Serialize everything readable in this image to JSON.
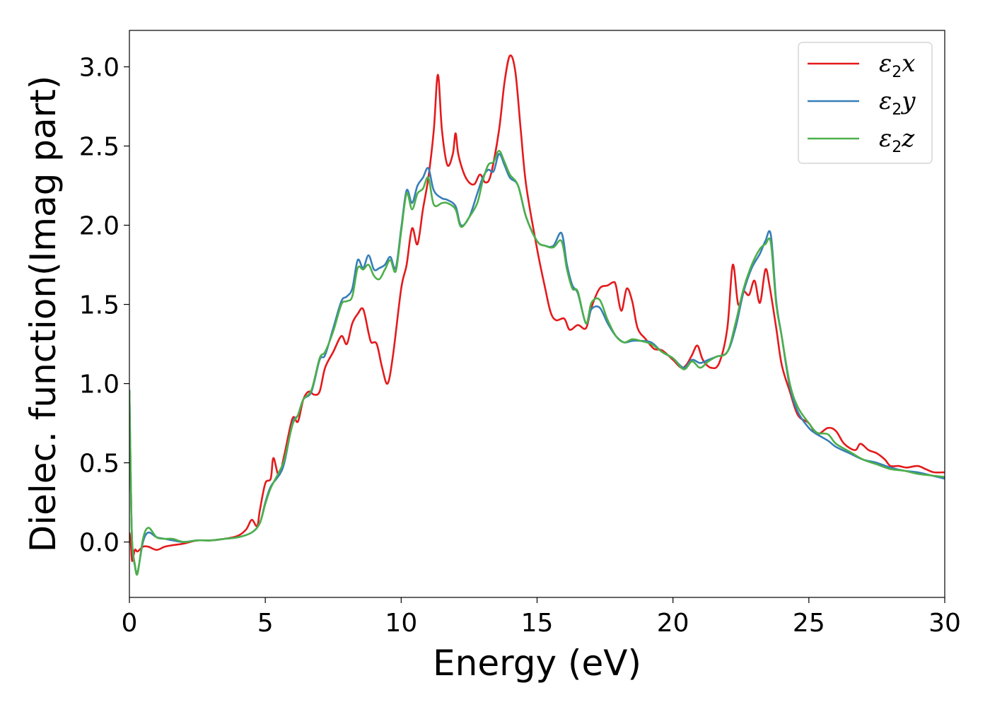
{
  "chart_data": {
    "type": "line",
    "title": "",
    "xlabel": "Energy (eV)",
    "ylabel": "Dielec. function(Imag part)",
    "xlim": [
      0,
      30
    ],
    "ylim": [
      -0.35,
      3.23
    ],
    "x_ticks": [
      0,
      5,
      10,
      15,
      20,
      25,
      30
    ],
    "x_tick_labels": [
      "0",
      "5",
      "10",
      "15",
      "20",
      "25",
      "30"
    ],
    "y_ticks": [
      0.0,
      0.5,
      1.0,
      1.5,
      2.0,
      2.5,
      3.0
    ],
    "y_tick_labels": [
      "0.0",
      "0.5",
      "1.0",
      "1.5",
      "2.0",
      "2.5",
      "3.0"
    ],
    "grid": false,
    "legend_position": "top-right",
    "series": [
      {
        "name": "ε2x",
        "legend_main": "ε",
        "legend_sub": "2",
        "legend_suffix": "x",
        "color": "#e41a1c",
        "x": [
          0,
          0.05,
          0.1,
          0.2,
          0.3,
          0.5,
          0.7,
          1.0,
          1.3,
          1.6,
          2.0,
          2.5,
          3.0,
          3.5,
          4.0,
          4.3,
          4.5,
          4.7,
          4.8,
          5.0,
          5.2,
          5.3,
          5.5,
          5.7,
          6.0,
          6.2,
          6.4,
          6.6,
          6.8,
          7.0,
          7.2,
          7.5,
          7.8,
          8.0,
          8.2,
          8.4,
          8.6,
          8.8,
          8.9,
          9.1,
          9.3,
          9.5,
          9.7,
          10.0,
          10.2,
          10.4,
          10.6,
          10.8,
          11.0,
          11.2,
          11.35,
          11.5,
          11.7,
          11.9,
          12.0,
          12.1,
          12.3,
          12.5,
          12.7,
          12.9,
          13.1,
          13.3,
          13.6,
          13.8,
          14.0,
          14.2,
          14.4,
          14.6,
          15.0,
          15.3,
          15.5,
          15.7,
          16.0,
          16.2,
          16.5,
          16.8,
          17.0,
          17.3,
          17.6,
          17.8,
          17.9,
          18.1,
          18.3,
          18.5,
          18.7,
          19.0,
          19.3,
          19.6,
          20.0,
          20.3,
          20.5,
          20.7,
          20.9,
          21.1,
          21.4,
          21.7,
          22.0,
          22.2,
          22.4,
          22.6,
          22.8,
          23.0,
          23.2,
          23.4,
          23.55,
          23.8,
          24.0,
          24.3,
          24.6,
          25.0,
          25.3,
          25.7,
          26.0,
          26.3,
          26.7,
          26.9,
          27.2,
          27.5,
          27.8,
          28.0,
          28.3,
          28.6,
          29.0,
          29.3,
          29.6,
          30.0
        ],
        "values": [
          0.06,
          0.0,
          -0.12,
          -0.05,
          -0.06,
          -0.03,
          -0.03,
          -0.05,
          -0.03,
          -0.02,
          -0.01,
          0.01,
          0.01,
          0.02,
          0.04,
          0.08,
          0.14,
          0.1,
          0.2,
          0.37,
          0.4,
          0.53,
          0.42,
          0.55,
          0.78,
          0.76,
          0.9,
          0.95,
          0.93,
          0.95,
          1.1,
          1.2,
          1.3,
          1.25,
          1.38,
          1.44,
          1.47,
          1.32,
          1.26,
          1.25,
          1.1,
          1.0,
          1.18,
          1.6,
          1.75,
          1.98,
          1.88,
          2.1,
          2.3,
          2.6,
          2.95,
          2.6,
          2.38,
          2.45,
          2.58,
          2.45,
          2.33,
          2.27,
          2.26,
          2.32,
          2.27,
          2.32,
          2.6,
          2.9,
          3.07,
          2.97,
          2.6,
          2.25,
          1.85,
          1.6,
          1.45,
          1.4,
          1.41,
          1.34,
          1.37,
          1.35,
          1.48,
          1.6,
          1.62,
          1.64,
          1.62,
          1.46,
          1.6,
          1.52,
          1.35,
          1.28,
          1.22,
          1.21,
          1.15,
          1.1,
          1.12,
          1.18,
          1.24,
          1.15,
          1.1,
          1.13,
          1.35,
          1.75,
          1.5,
          1.58,
          1.56,
          1.65,
          1.51,
          1.72,
          1.62,
          1.35,
          1.12,
          0.95,
          0.8,
          0.75,
          0.68,
          0.72,
          0.7,
          0.62,
          0.58,
          0.62,
          0.58,
          0.56,
          0.52,
          0.48,
          0.48,
          0.47,
          0.48,
          0.46,
          0.44,
          0.44
        ]
      },
      {
        "name": "ε2y",
        "legend_main": "ε",
        "legend_sub": "2",
        "legend_suffix": "y",
        "color": "#377eb8",
        "x": [
          0,
          0.05,
          0.1,
          0.2,
          0.3,
          0.5,
          0.7,
          1.0,
          1.3,
          1.6,
          2.0,
          2.5,
          3.0,
          3.5,
          4.0,
          4.5,
          4.8,
          5.0,
          5.2,
          5.5,
          5.7,
          6.0,
          6.2,
          6.4,
          6.7,
          7.0,
          7.2,
          7.5,
          7.8,
          8.0,
          8.2,
          8.4,
          8.6,
          8.8,
          9.0,
          9.2,
          9.4,
          9.6,
          9.8,
          10.0,
          10.2,
          10.4,
          10.6,
          10.8,
          11.0,
          11.2,
          11.5,
          11.7,
          12.0,
          12.2,
          12.5,
          12.8,
          13.0,
          13.2,
          13.4,
          13.6,
          13.8,
          14.0,
          14.3,
          14.6,
          15.0,
          15.3,
          15.6,
          15.9,
          16.1,
          16.3,
          16.5,
          16.8,
          17.0,
          17.3,
          17.6,
          17.9,
          18.2,
          18.5,
          18.8,
          19.2,
          19.6,
          20.0,
          20.4,
          20.7,
          21.0,
          21.3,
          21.6,
          22.0,
          22.3,
          22.6,
          22.9,
          23.2,
          23.4,
          23.6,
          23.8,
          24.0,
          24.3,
          24.6,
          25.0,
          25.3,
          25.7,
          26.0,
          26.5,
          27.0,
          27.5,
          28.0,
          28.5,
          29.0,
          29.5,
          30.0
        ],
        "values": [
          0.96,
          0.4,
          0.0,
          -0.15,
          -0.19,
          0.0,
          0.06,
          0.03,
          0.02,
          0.01,
          0.0,
          0.01,
          0.01,
          0.02,
          0.03,
          0.06,
          0.12,
          0.25,
          0.35,
          0.42,
          0.5,
          0.75,
          0.8,
          0.9,
          0.95,
          1.15,
          1.18,
          1.35,
          1.52,
          1.55,
          1.6,
          1.78,
          1.73,
          1.81,
          1.72,
          1.73,
          1.75,
          1.8,
          1.73,
          1.98,
          2.22,
          2.14,
          2.25,
          2.3,
          2.36,
          2.22,
          2.17,
          2.16,
          2.12,
          2.0,
          2.05,
          2.2,
          2.3,
          2.35,
          2.34,
          2.45,
          2.38,
          2.3,
          2.25,
          2.05,
          1.9,
          1.87,
          1.87,
          1.95,
          1.75,
          1.62,
          1.57,
          1.38,
          1.47,
          1.48,
          1.38,
          1.3,
          1.26,
          1.27,
          1.27,
          1.26,
          1.2,
          1.16,
          1.1,
          1.15,
          1.13,
          1.15,
          1.17,
          1.2,
          1.35,
          1.58,
          1.73,
          1.82,
          1.9,
          1.94,
          1.52,
          1.3,
          0.98,
          0.82,
          0.72,
          0.68,
          0.64,
          0.6,
          0.56,
          0.52,
          0.5,
          0.47,
          0.45,
          0.44,
          0.42,
          0.4
        ]
      },
      {
        "name": "ε2z",
        "legend_main": "ε",
        "legend_sub": "2",
        "legend_suffix": "z",
        "color": "#4daf4a",
        "x": [
          0,
          0.05,
          0.1,
          0.2,
          0.3,
          0.5,
          0.7,
          1.0,
          1.3,
          1.6,
          2.0,
          2.5,
          3.0,
          3.5,
          4.0,
          4.5,
          4.8,
          5.0,
          5.2,
          5.5,
          5.7,
          6.0,
          6.2,
          6.4,
          6.7,
          7.0,
          7.2,
          7.5,
          7.8,
          8.0,
          8.2,
          8.4,
          8.6,
          8.8,
          9.0,
          9.2,
          9.4,
          9.6,
          9.8,
          10.0,
          10.2,
          10.4,
          10.6,
          10.8,
          11.0,
          11.2,
          11.5,
          11.7,
          12.0,
          12.2,
          12.5,
          12.8,
          13.0,
          13.2,
          13.4,
          13.6,
          13.8,
          14.0,
          14.3,
          14.6,
          15.0,
          15.3,
          15.6,
          15.9,
          16.1,
          16.3,
          16.5,
          16.8,
          17.0,
          17.3,
          17.6,
          17.9,
          18.2,
          18.5,
          18.8,
          19.2,
          19.6,
          20.0,
          20.4,
          20.7,
          21.0,
          21.3,
          21.6,
          22.0,
          22.3,
          22.6,
          22.9,
          23.2,
          23.4,
          23.6,
          23.8,
          24.0,
          24.3,
          24.6,
          25.0,
          25.3,
          25.7,
          26.0,
          26.5,
          27.0,
          27.5,
          28.0,
          28.5,
          29.0,
          29.5,
          30.0
        ],
        "values": [
          0.96,
          0.4,
          0.0,
          -0.14,
          -0.2,
          0.02,
          0.09,
          0.03,
          0.02,
          0.02,
          0.0,
          0.01,
          0.01,
          0.02,
          0.03,
          0.06,
          0.12,
          0.24,
          0.34,
          0.44,
          0.52,
          0.74,
          0.8,
          0.9,
          0.96,
          1.16,
          1.2,
          1.33,
          1.5,
          1.52,
          1.55,
          1.73,
          1.72,
          1.75,
          1.68,
          1.66,
          1.72,
          1.78,
          1.71,
          1.96,
          2.2,
          2.1,
          2.2,
          2.23,
          2.3,
          2.13,
          2.14,
          2.14,
          2.1,
          1.99,
          2.05,
          2.14,
          2.28,
          2.38,
          2.4,
          2.47,
          2.4,
          2.32,
          2.25,
          2.05,
          1.9,
          1.87,
          1.86,
          1.9,
          1.72,
          1.6,
          1.58,
          1.38,
          1.51,
          1.53,
          1.4,
          1.3,
          1.26,
          1.28,
          1.27,
          1.25,
          1.2,
          1.16,
          1.09,
          1.14,
          1.1,
          1.14,
          1.17,
          1.2,
          1.38,
          1.6,
          1.75,
          1.85,
          1.88,
          1.89,
          1.5,
          1.3,
          1.0,
          0.85,
          0.75,
          0.69,
          0.68,
          0.62,
          0.57,
          0.52,
          0.49,
          0.46,
          0.45,
          0.43,
          0.42,
          0.41
        ]
      }
    ]
  }
}
